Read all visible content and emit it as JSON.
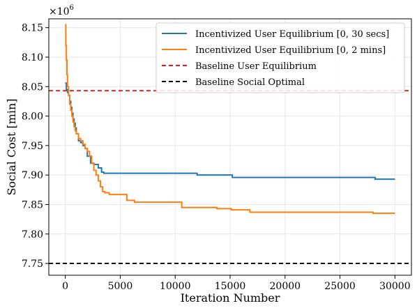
{
  "chart_data": {
    "type": "line",
    "title": "",
    "xlabel": "Iteration Number",
    "ylabel": "Social Cost [min]",
    "y_multiplier_label": "×10",
    "y_multiplier_exponent": "6",
    "xlim": [
      -1500,
      31500
    ],
    "ylim": [
      7.73,
      8.165
    ],
    "x_ticks": [
      0,
      5000,
      10000,
      15000,
      20000,
      25000,
      30000
    ],
    "x_tick_labels": [
      "0",
      "5000",
      "10000",
      "15000",
      "20000",
      "25000",
      "30000"
    ],
    "y_ticks": [
      7.75,
      7.8,
      7.85,
      7.9,
      7.95,
      8.0,
      8.05,
      8.1,
      8.15
    ],
    "y_tick_labels": [
      "7.75",
      "7.80",
      "7.85",
      "7.90",
      "7.95",
      "8.00",
      "8.05",
      "8.10",
      "8.15"
    ],
    "grid": true,
    "legend_position": "top-right",
    "series": [
      {
        "name": "Incentivized User Equilibrium [0, 30 secs]",
        "color": "#1f77b4",
        "style": "solid",
        "step": true,
        "x": [
          0,
          100,
          200,
          300,
          400,
          500,
          600,
          700,
          800,
          900,
          1000,
          1200,
          1400,
          1600,
          1800,
          2000,
          2300,
          2600,
          3000,
          3300,
          3500,
          12000,
          15200,
          28200,
          30000
        ],
        "y": [
          8.056,
          8.045,
          8.04,
          8.035,
          8.025,
          8.015,
          8.005,
          7.995,
          7.988,
          7.98,
          7.97,
          7.958,
          7.955,
          7.95,
          7.945,
          7.932,
          7.92,
          7.918,
          7.912,
          7.905,
          7.903,
          7.9,
          7.896,
          7.893,
          7.893
        ]
      },
      {
        "name": "Incentivized User Equilibrium [0, 2 mins]",
        "color": "#ff7f0e",
        "style": "solid",
        "step": true,
        "x": [
          0,
          50,
          100,
          150,
          200,
          300,
          400,
          500,
          600,
          700,
          800,
          900,
          1000,
          1200,
          1400,
          1600,
          1800,
          2000,
          2200,
          2400,
          2600,
          2800,
          3000,
          3200,
          3400,
          3600,
          4000,
          5600,
          6300,
          10600,
          13800,
          15100,
          16800,
          28000,
          30000
        ],
        "y": [
          8.155,
          8.12,
          8.095,
          8.07,
          8.05,
          8.035,
          8.02,
          8.01,
          8.0,
          7.99,
          7.982,
          7.975,
          7.97,
          7.962,
          7.958,
          7.952,
          7.945,
          7.94,
          7.932,
          7.92,
          7.908,
          7.9,
          7.89,
          7.88,
          7.872,
          7.87,
          7.867,
          7.857,
          7.854,
          7.845,
          7.843,
          7.841,
          7.837,
          7.835,
          7.835
        ]
      },
      {
        "name": "Baseline User Equilibrium",
        "color": "#e41a1c",
        "style": "dashed",
        "value": 8.043
      },
      {
        "name": "Baseline Social Optimal",
        "color": "#000000",
        "style": "dashed",
        "value": 7.75
      }
    ]
  }
}
